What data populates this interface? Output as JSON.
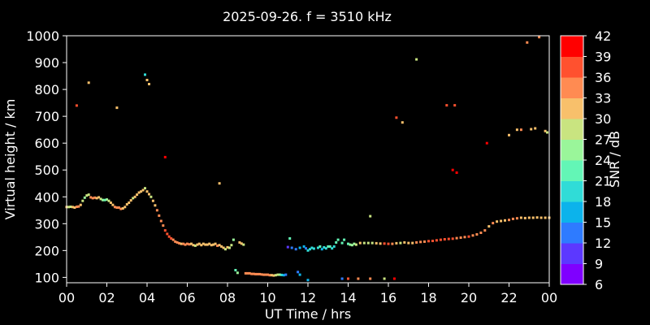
{
  "chart_data": {
    "type": "scatter",
    "title": "2025-09-26. f = 3510 kHz",
    "xlabel": "UT Time / hrs",
    "ylabel": "Virtual height / km",
    "xlim": [
      0,
      24
    ],
    "ylim": [
      80,
      1000
    ],
    "x_ticks": [
      "00",
      "02",
      "04",
      "06",
      "08",
      "10",
      "12",
      "14",
      "16",
      "18",
      "20",
      "22",
      "00"
    ],
    "y_ticks": [
      100,
      200,
      300,
      400,
      500,
      600,
      700,
      800,
      900,
      1000
    ],
    "grid": false,
    "colorbar": {
      "label": "SNR / dB",
      "ticks": [
        6,
        9,
        12,
        15,
        18,
        21,
        24,
        27,
        30,
        33,
        36,
        39,
        42
      ],
      "colors": [
        "#7f00ff",
        "#5c38ff",
        "#2e7bff",
        "#0cb3eb",
        "#30dcd7",
        "#63f6b6",
        "#9af69a",
        "#c9e480",
        "#f8c06b",
        "#ff8b52",
        "#ff512f",
        "#ff0000"
      ]
    },
    "series": [
      {
        "points": [
          [
            0.0,
            362,
            31
          ],
          [
            0.1,
            362,
            29
          ],
          [
            0.2,
            363,
            28
          ],
          [
            0.3,
            362,
            30
          ],
          [
            0.4,
            360,
            32
          ],
          [
            0.5,
            363,
            33
          ],
          [
            0.6,
            364,
            34
          ],
          [
            0.7,
            370,
            32
          ],
          [
            0.8,
            385,
            28
          ],
          [
            0.9,
            397,
            26
          ],
          [
            1.0,
            405,
            27
          ],
          [
            1.1,
            408,
            29
          ],
          [
            1.2,
            398,
            33
          ],
          [
            1.3,
            395,
            34
          ],
          [
            1.4,
            397,
            33
          ],
          [
            1.5,
            395,
            32
          ],
          [
            1.6,
            398,
            31
          ],
          [
            1.7,
            392,
            28
          ],
          [
            1.8,
            388,
            24
          ],
          [
            1.9,
            388,
            22
          ],
          [
            2.0,
            390,
            25
          ],
          [
            2.1,
            385,
            28
          ],
          [
            2.2,
            378,
            30
          ],
          [
            2.3,
            370,
            32
          ],
          [
            2.4,
            362,
            34
          ],
          [
            2.5,
            360,
            35
          ],
          [
            2.6,
            360,
            34
          ],
          [
            2.7,
            355,
            33
          ],
          [
            2.8,
            357,
            30
          ],
          [
            2.9,
            362,
            31
          ],
          [
            3.0,
            372,
            32
          ],
          [
            3.1,
            378,
            31
          ],
          [
            3.2,
            387,
            30
          ],
          [
            3.3,
            395,
            29
          ],
          [
            3.4,
            400,
            30
          ],
          [
            3.5,
            408,
            31
          ],
          [
            3.6,
            416,
            30
          ],
          [
            3.7,
            420,
            31
          ],
          [
            3.8,
            425,
            30
          ],
          [
            3.9,
            432,
            29
          ],
          [
            4.0,
            420,
            32
          ],
          [
            4.1,
            410,
            30
          ],
          [
            4.2,
            400,
            28
          ],
          [
            4.3,
            385,
            30
          ],
          [
            4.4,
            368,
            31
          ],
          [
            4.5,
            350,
            33
          ],
          [
            4.6,
            330,
            34
          ],
          [
            4.7,
            310,
            33
          ],
          [
            4.8,
            293,
            35
          ],
          [
            4.9,
            275,
            36
          ],
          [
            5.0,
            262,
            37
          ],
          [
            5.1,
            252,
            36
          ],
          [
            5.2,
            245,
            36
          ],
          [
            5.3,
            240,
            35
          ],
          [
            5.4,
            233,
            34
          ],
          [
            5.5,
            230,
            34
          ],
          [
            5.6,
            227,
            33
          ],
          [
            5.7,
            225,
            32
          ],
          [
            5.8,
            225,
            33
          ],
          [
            5.9,
            222,
            33
          ],
          [
            6.0,
            225,
            34
          ],
          [
            6.1,
            223,
            33
          ],
          [
            6.2,
            225,
            32
          ],
          [
            6.3,
            220,
            30
          ],
          [
            6.4,
            218,
            29
          ],
          [
            6.5,
            222,
            30
          ],
          [
            6.6,
            225,
            31
          ],
          [
            6.7,
            220,
            32
          ],
          [
            6.8,
            225,
            31
          ],
          [
            6.9,
            222,
            30
          ],
          [
            7.0,
            222,
            32
          ],
          [
            7.1,
            225,
            31
          ],
          [
            7.2,
            220,
            30
          ],
          [
            7.3,
            222,
            31
          ],
          [
            7.4,
            225,
            32
          ],
          [
            7.5,
            218,
            33
          ],
          [
            7.6,
            220,
            32
          ],
          [
            7.7,
            215,
            31
          ],
          [
            7.8,
            210,
            30
          ],
          [
            7.9,
            205,
            28
          ],
          [
            8.0,
            212,
            30
          ],
          [
            8.1,
            210,
            29
          ],
          [
            8.2,
            220,
            27
          ],
          [
            8.3,
            240,
            25
          ],
          [
            8.6,
            230,
            30
          ],
          [
            8.7,
            226,
            31
          ],
          [
            8.8,
            222,
            29
          ],
          [
            8.4,
            127,
            23
          ],
          [
            8.5,
            117,
            24
          ],
          [
            8.9,
            115,
            33
          ],
          [
            9.0,
            115,
            34
          ],
          [
            9.1,
            115,
            35
          ],
          [
            9.2,
            113,
            35
          ],
          [
            9.3,
            113,
            34
          ],
          [
            9.4,
            112,
            35
          ],
          [
            9.5,
            112,
            35
          ],
          [
            9.6,
            112,
            34
          ],
          [
            9.7,
            111,
            33
          ],
          [
            9.8,
            110,
            34
          ],
          [
            9.9,
            110,
            35
          ],
          [
            10.0,
            110,
            34
          ],
          [
            10.1,
            108,
            33
          ],
          [
            10.2,
            108,
            31
          ],
          [
            10.3,
            107,
            30
          ],
          [
            10.4,
            108,
            29
          ],
          [
            10.5,
            110,
            28
          ],
          [
            10.6,
            110,
            24
          ],
          [
            10.7,
            109,
            20
          ],
          [
            10.8,
            108,
            15
          ],
          [
            10.9,
            110,
            12
          ],
          [
            11.1,
            245,
            23
          ],
          [
            11.0,
            213,
            10
          ],
          [
            11.2,
            210,
            12
          ],
          [
            11.4,
            205,
            13
          ],
          [
            11.6,
            210,
            17
          ],
          [
            11.8,
            215,
            16
          ],
          [
            11.9,
            208,
            14
          ],
          [
            12.0,
            200,
            19
          ],
          [
            12.1,
            205,
            18
          ],
          [
            12.2,
            210,
            20
          ],
          [
            12.3,
            207,
            18
          ],
          [
            12.5,
            210,
            19
          ],
          [
            12.6,
            215,
            21
          ],
          [
            12.7,
            205,
            17
          ],
          [
            12.8,
            212,
            18
          ],
          [
            12.9,
            208,
            19
          ],
          [
            13.0,
            215,
            22
          ],
          [
            13.1,
            215,
            21
          ],
          [
            13.2,
            208,
            19
          ],
          [
            13.3,
            215,
            20
          ],
          [
            13.4,
            230,
            22
          ],
          [
            13.5,
            240,
            21
          ],
          [
            13.7,
            228,
            23
          ],
          [
            13.8,
            240,
            22
          ],
          [
            14.0,
            225,
            23
          ],
          [
            14.1,
            222,
            26
          ],
          [
            14.2,
            220,
            24
          ],
          [
            14.3,
            225,
            25
          ],
          [
            14.4,
            222,
            27
          ],
          [
            11.5,
            120,
            12
          ],
          [
            11.6,
            110,
            15
          ],
          [
            12.0,
            90,
            17
          ],
          [
            13.7,
            95,
            14
          ],
          [
            14.0,
            95,
            38
          ],
          [
            14.5,
            95,
            34
          ],
          [
            15.1,
            95,
            35
          ],
          [
            15.8,
            95,
            28
          ],
          [
            16.3,
            95,
            40
          ],
          [
            14.6,
            228,
            30
          ],
          [
            14.8,
            228,
            28
          ],
          [
            15.0,
            228,
            27
          ],
          [
            15.2,
            228,
            29
          ],
          [
            15.4,
            227,
            30
          ],
          [
            15.6,
            226,
            32
          ],
          [
            15.8,
            226,
            36
          ],
          [
            16.0,
            225,
            38
          ],
          [
            16.2,
            225,
            34
          ],
          [
            16.4,
            227,
            30
          ],
          [
            16.6,
            228,
            29
          ],
          [
            16.8,
            230,
            30
          ],
          [
            17.0,
            228,
            31
          ],
          [
            17.2,
            228,
            32
          ],
          [
            17.4,
            230,
            33
          ],
          [
            17.6,
            232,
            34
          ],
          [
            17.8,
            233,
            35
          ],
          [
            18.0,
            235,
            36
          ],
          [
            18.2,
            236,
            37
          ],
          [
            18.4,
            238,
            38
          ],
          [
            18.6,
            240,
            36
          ],
          [
            18.8,
            242,
            37
          ],
          [
            19.0,
            243,
            36
          ],
          [
            19.2,
            244,
            37
          ],
          [
            19.4,
            246,
            35
          ],
          [
            19.6,
            248,
            34
          ],
          [
            19.8,
            250,
            35
          ],
          [
            20.0,
            252,
            36
          ],
          [
            20.2,
            256,
            35
          ],
          [
            20.4,
            260,
            34
          ],
          [
            20.6,
            266,
            33
          ],
          [
            20.8,
            275,
            34
          ],
          [
            21.0,
            290,
            32
          ],
          [
            21.2,
            302,
            33
          ],
          [
            21.4,
            308,
            31
          ],
          [
            21.6,
            310,
            30
          ],
          [
            21.8,
            312,
            32
          ],
          [
            22.0,
            314,
            33
          ],
          [
            22.2,
            318,
            34
          ],
          [
            22.4,
            320,
            33
          ],
          [
            22.6,
            322,
            32
          ],
          [
            22.8,
            321,
            31
          ],
          [
            23.0,
            322,
            30
          ],
          [
            23.2,
            322,
            31
          ],
          [
            23.4,
            323,
            32
          ],
          [
            23.6,
            322,
            31
          ],
          [
            23.8,
            322,
            30
          ],
          [
            24.0,
            322,
            31
          ],
          [
            0.5,
            740,
            36
          ],
          [
            1.1,
            825,
            32
          ],
          [
            2.5,
            732,
            32
          ],
          [
            3.9,
            855,
            20
          ],
          [
            4.0,
            835,
            30
          ],
          [
            4.1,
            820,
            31
          ],
          [
            4.9,
            548,
            40
          ],
          [
            7.6,
            450,
            30
          ],
          [
            15.1,
            328,
            28
          ],
          [
            16.4,
            695,
            38
          ],
          [
            16.7,
            677,
            30
          ],
          [
            17.4,
            912,
            28
          ],
          [
            18.9,
            741,
            37
          ],
          [
            19.3,
            741,
            37
          ],
          [
            19.2,
            500,
            40
          ],
          [
            19.4,
            490,
            42
          ],
          [
            20.9,
            600,
            42
          ],
          [
            22.0,
            630,
            30
          ],
          [
            22.4,
            650,
            32
          ],
          [
            22.6,
            650,
            33
          ],
          [
            22.9,
            975,
            35
          ],
          [
            23.1,
            652,
            31
          ],
          [
            23.3,
            655,
            32
          ],
          [
            23.5,
            995,
            34
          ],
          [
            23.8,
            645,
            30
          ],
          [
            23.9,
            640,
            29
          ]
        ]
      }
    ]
  }
}
